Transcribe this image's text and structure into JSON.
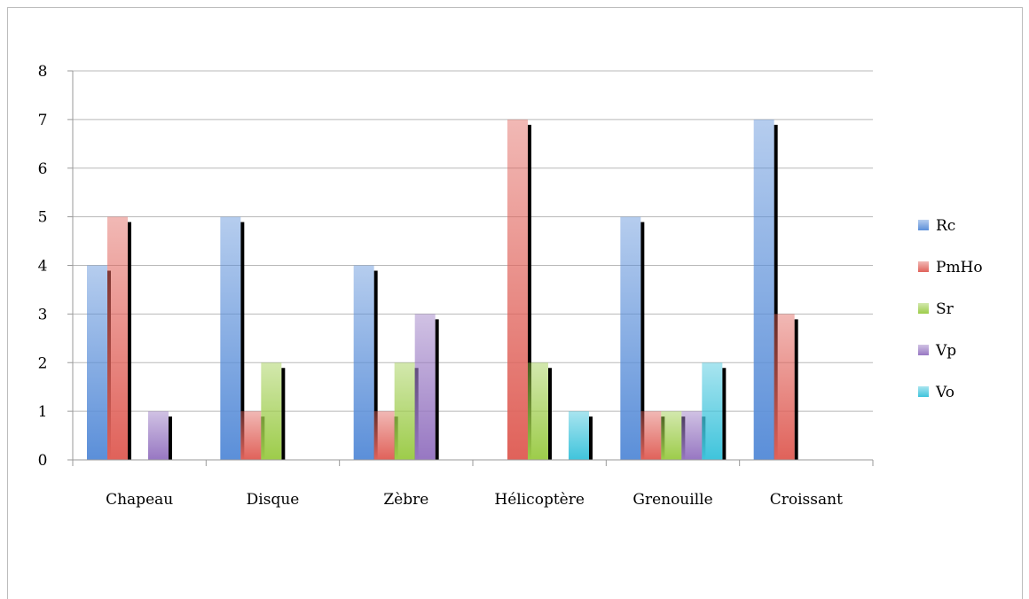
{
  "chart_data": {
    "type": "bar",
    "title": "",
    "xlabel": "",
    "ylabel": "",
    "ylim": [
      0,
      8
    ],
    "yticks": [
      0,
      1,
      2,
      3,
      4,
      5,
      6,
      7,
      8
    ],
    "grid": true,
    "legend_position": "right",
    "categories": [
      "Chapeau",
      "Disque",
      "Zèbre",
      "Hélicoptère",
      "Grenouille",
      "Croissant"
    ],
    "series": [
      {
        "name": "Rc",
        "color": "#5b8fd9",
        "values": [
          4,
          5,
          4,
          0,
          5,
          7
        ]
      },
      {
        "name": "PmHo",
        "color": "#e0625a",
        "values": [
          5,
          1,
          1,
          7,
          1,
          3
        ]
      },
      {
        "name": "Sr",
        "color": "#9dcc4a",
        "values": [
          0,
          2,
          2,
          2,
          1,
          0
        ]
      },
      {
        "name": "Vp",
        "color": "#9777c2",
        "values": [
          1,
          0,
          3,
          0,
          1,
          0
        ]
      },
      {
        "name": "Vo",
        "color": "#3fc4dc",
        "values": [
          0,
          0,
          0,
          1,
          2,
          0
        ]
      }
    ]
  }
}
